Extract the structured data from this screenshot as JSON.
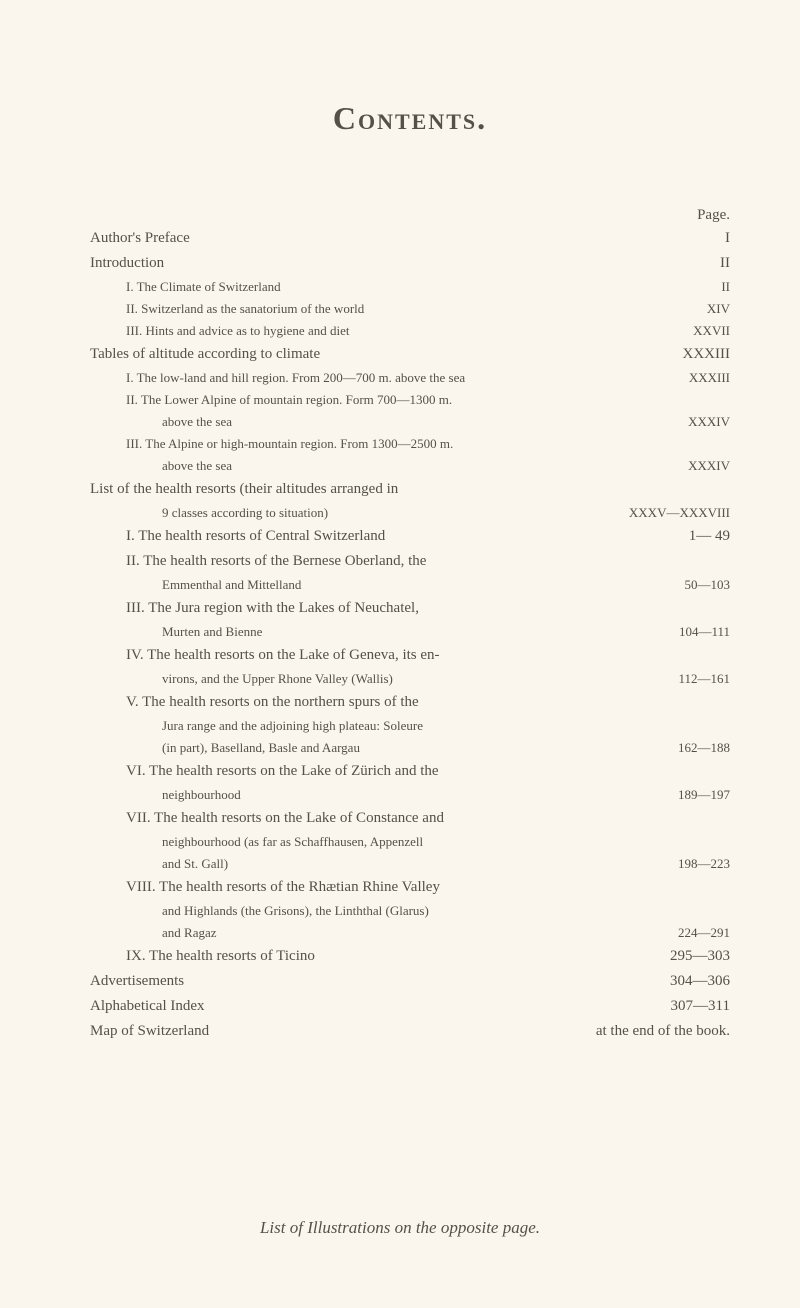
{
  "meta": {
    "title": "Contents.",
    "page_label": "Page.",
    "footer": "List of Illustrations on the opposite page."
  },
  "entries": [
    {
      "cls": "row lvl-0",
      "label": "Author's Preface",
      "page": "I"
    },
    {
      "cls": "row lvl-0",
      "label": "Introduction",
      "page": "II"
    },
    {
      "cls": "row small lvl-1",
      "label": "I. The Climate of Switzerland",
      "page": "II"
    },
    {
      "cls": "row small lvl-1",
      "label": "II. Switzerland as the sanatorium of the world",
      "page": "XIV"
    },
    {
      "cls": "row small lvl-1",
      "label": "III. Hints and advice as to hygiene and diet",
      "page": "XXVII"
    },
    {
      "cls": "row lvl-0",
      "label": "Tables of altitude according to climate",
      "page": "XXXIII"
    },
    {
      "cls": "row small lvl-1",
      "label": "I. The low-land and hill region. From 200—700 m. above the sea",
      "page": "XXXIII"
    },
    {
      "cls": "row small lvl-1",
      "label": "II. The Lower Alpine of mountain region. Form 700—1300 m.",
      "page": ""
    },
    {
      "cls": "row small cont-1",
      "label": "above the sea",
      "page": "XXXIV"
    },
    {
      "cls": "row small lvl-1",
      "label": "III. The Alpine or high-mountain region. From 1300—2500 m.",
      "page": ""
    },
    {
      "cls": "row small cont-1",
      "label": "above the sea",
      "page": "XXXIV"
    },
    {
      "cls": "row lvl-0",
      "label": "List of the health resorts (their altitudes arranged in",
      "page": ""
    },
    {
      "cls": "row small cont-1",
      "label": "9 classes according to situation)",
      "page": "XXXV—XXXVIII"
    },
    {
      "cls": "row lvl-1",
      "label": "I. The health resorts of Central Switzerland",
      "page": "1— 49"
    },
    {
      "cls": "row lvl-1",
      "label": "II. The health resorts of the Bernese Oberland, the",
      "page": ""
    },
    {
      "cls": "row small cont-1",
      "label": "Emmenthal and Mittelland",
      "page": "50—103"
    },
    {
      "cls": "row lvl-1",
      "label": "III. The Jura region with the Lakes of Neuchatel,",
      "page": ""
    },
    {
      "cls": "row small cont-1",
      "label": "Murten and Bienne",
      "page": "104—111"
    },
    {
      "cls": "row lvl-1",
      "label": "IV. The health resorts on the Lake of Geneva, its en-",
      "page": ""
    },
    {
      "cls": "row small cont-1",
      "label": "virons, and the Upper Rhone Valley (Wallis)",
      "page": "112—161"
    },
    {
      "cls": "row lvl-1",
      "label": "V. The health resorts on the northern spurs of the",
      "page": ""
    },
    {
      "cls": "row small cont-1",
      "label": "Jura range and the adjoining high plateau: Soleure",
      "page": ""
    },
    {
      "cls": "row small cont-1",
      "label": "(in part), Baselland, Basle and Aargau",
      "page": "162—188"
    },
    {
      "cls": "row lvl-1",
      "label": "VI. The health resorts on the Lake of Zürich and the",
      "page": ""
    },
    {
      "cls": "row small cont-1",
      "label": "neighbourhood",
      "page": "189—197"
    },
    {
      "cls": "row lvl-1",
      "label": "VII. The health resorts on the Lake of Constance and",
      "page": ""
    },
    {
      "cls": "row small cont-1",
      "label": "neighbourhood (as far as Schaffhausen, Appenzell",
      "page": ""
    },
    {
      "cls": "row small cont-1",
      "label": "and St. Gall)",
      "page": "198—223"
    },
    {
      "cls": "row lvl-1",
      "label": "VIII. The health resorts of the Rhætian Rhine Valley",
      "page": ""
    },
    {
      "cls": "row small cont-1",
      "label": "and Highlands (the Grisons), the Linththal (Glarus)",
      "page": ""
    },
    {
      "cls": "row small cont-1",
      "label": "and Ragaz",
      "page": "224—291"
    },
    {
      "cls": "row lvl-1",
      "label": "IX. The health resorts of Ticino",
      "page": "295—303"
    },
    {
      "cls": "row lvl-0",
      "label": "Advertisements",
      "page": "304—306"
    },
    {
      "cls": "row lvl-0",
      "label": "Alphabetical Index",
      "page": "307—311"
    },
    {
      "cls": "row lvl-0",
      "label": "Map of Switzerland",
      "page": "at the end of the book."
    }
  ]
}
